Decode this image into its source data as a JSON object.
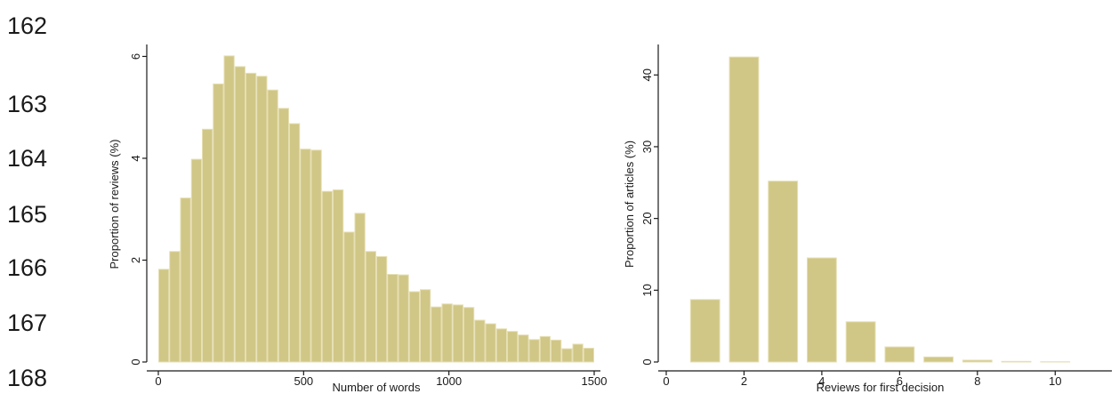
{
  "line_numbers": [
    "162",
    "163",
    "164",
    "165",
    "166",
    "167",
    "168"
  ],
  "colors": {
    "bar_fill": "#D0C686",
    "bar_edge": "#E6DFB3",
    "axis": "#1a1a1a"
  },
  "chart_data": [
    {
      "type": "bar",
      "xlabel": "Number of words",
      "ylabel": "Proportion of reviews (%)",
      "xlim": [
        0,
        1500
      ],
      "ylim": [
        0,
        6.2
      ],
      "xticks": [
        0,
        500,
        1000,
        1500
      ],
      "yticks": [
        0,
        2,
        4,
        6
      ],
      "bin_width": 37.5,
      "bins_start": [
        0,
        37.5,
        75,
        112.5,
        150,
        187.5,
        225,
        262.5,
        300,
        337.5,
        375,
        412.5,
        450,
        487.5,
        525,
        562.5,
        600,
        637.5,
        675,
        712.5,
        750,
        787.5,
        825,
        862.5,
        900,
        937.5,
        975,
        1012.5,
        1050,
        1087.5,
        1125,
        1162.5,
        1200,
        1237.5,
        1275,
        1312.5,
        1350,
        1387.5,
        1425,
        1462.5
      ],
      "values": [
        1.82,
        2.17,
        3.22,
        3.98,
        4.57,
        5.46,
        6.01,
        5.8,
        5.67,
        5.61,
        5.34,
        4.98,
        4.68,
        4.18,
        4.16,
        3.35,
        3.38,
        2.55,
        2.92,
        2.17,
        2.07,
        1.72,
        1.71,
        1.38,
        1.42,
        1.08,
        1.14,
        1.12,
        1.07,
        0.82,
        0.75,
        0.65,
        0.6,
        0.53,
        0.44,
        0.5,
        0.43,
        0.26,
        0.35,
        0.27
      ]
    },
    {
      "type": "bar",
      "xlabel": "Reviews for first decision",
      "ylabel": "Proportion of articles (%)",
      "xlim": [
        0,
        11
      ],
      "ylim": [
        0,
        44
      ],
      "xticks": [
        0,
        2,
        4,
        6,
        8,
        10
      ],
      "yticks": [
        0,
        10,
        20,
        30,
        40
      ],
      "bar_width": 0.75,
      "x": [
        1,
        2,
        3,
        4,
        5,
        6,
        7,
        8,
        9,
        10
      ],
      "values": [
        8.7,
        42.5,
        25.2,
        14.5,
        5.6,
        2.1,
        0.7,
        0.25,
        0.08,
        0.03
      ]
    }
  ]
}
